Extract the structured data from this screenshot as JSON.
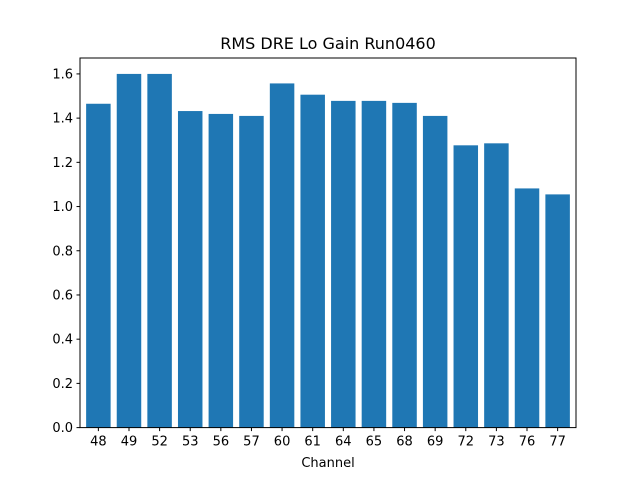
{
  "chart_data": {
    "type": "bar",
    "title": "RMS DRE Lo Gain Run0460",
    "xlabel": "Channel",
    "ylabel": "",
    "categories": [
      "48",
      "49",
      "52",
      "53",
      "56",
      "57",
      "60",
      "61",
      "64",
      "65",
      "68",
      "69",
      "72",
      "73",
      "76",
      "77"
    ],
    "values": [
      1.465,
      1.6,
      1.6,
      1.432,
      1.419,
      1.41,
      1.557,
      1.506,
      1.478,
      1.478,
      1.469,
      1.41,
      1.277,
      1.286,
      1.082,
      1.055
    ],
    "ylim": [
      0,
      1.672
    ],
    "yticks": [
      0.0,
      0.2,
      0.4,
      0.6,
      0.8,
      1.0,
      1.2,
      1.4,
      1.6
    ],
    "ytick_labels": [
      "0.0",
      "0.2",
      "0.4",
      "0.6",
      "0.8",
      "1.0",
      "1.2",
      "1.4",
      "1.6"
    ],
    "grid": false,
    "bar_color": "#1f77b4"
  }
}
